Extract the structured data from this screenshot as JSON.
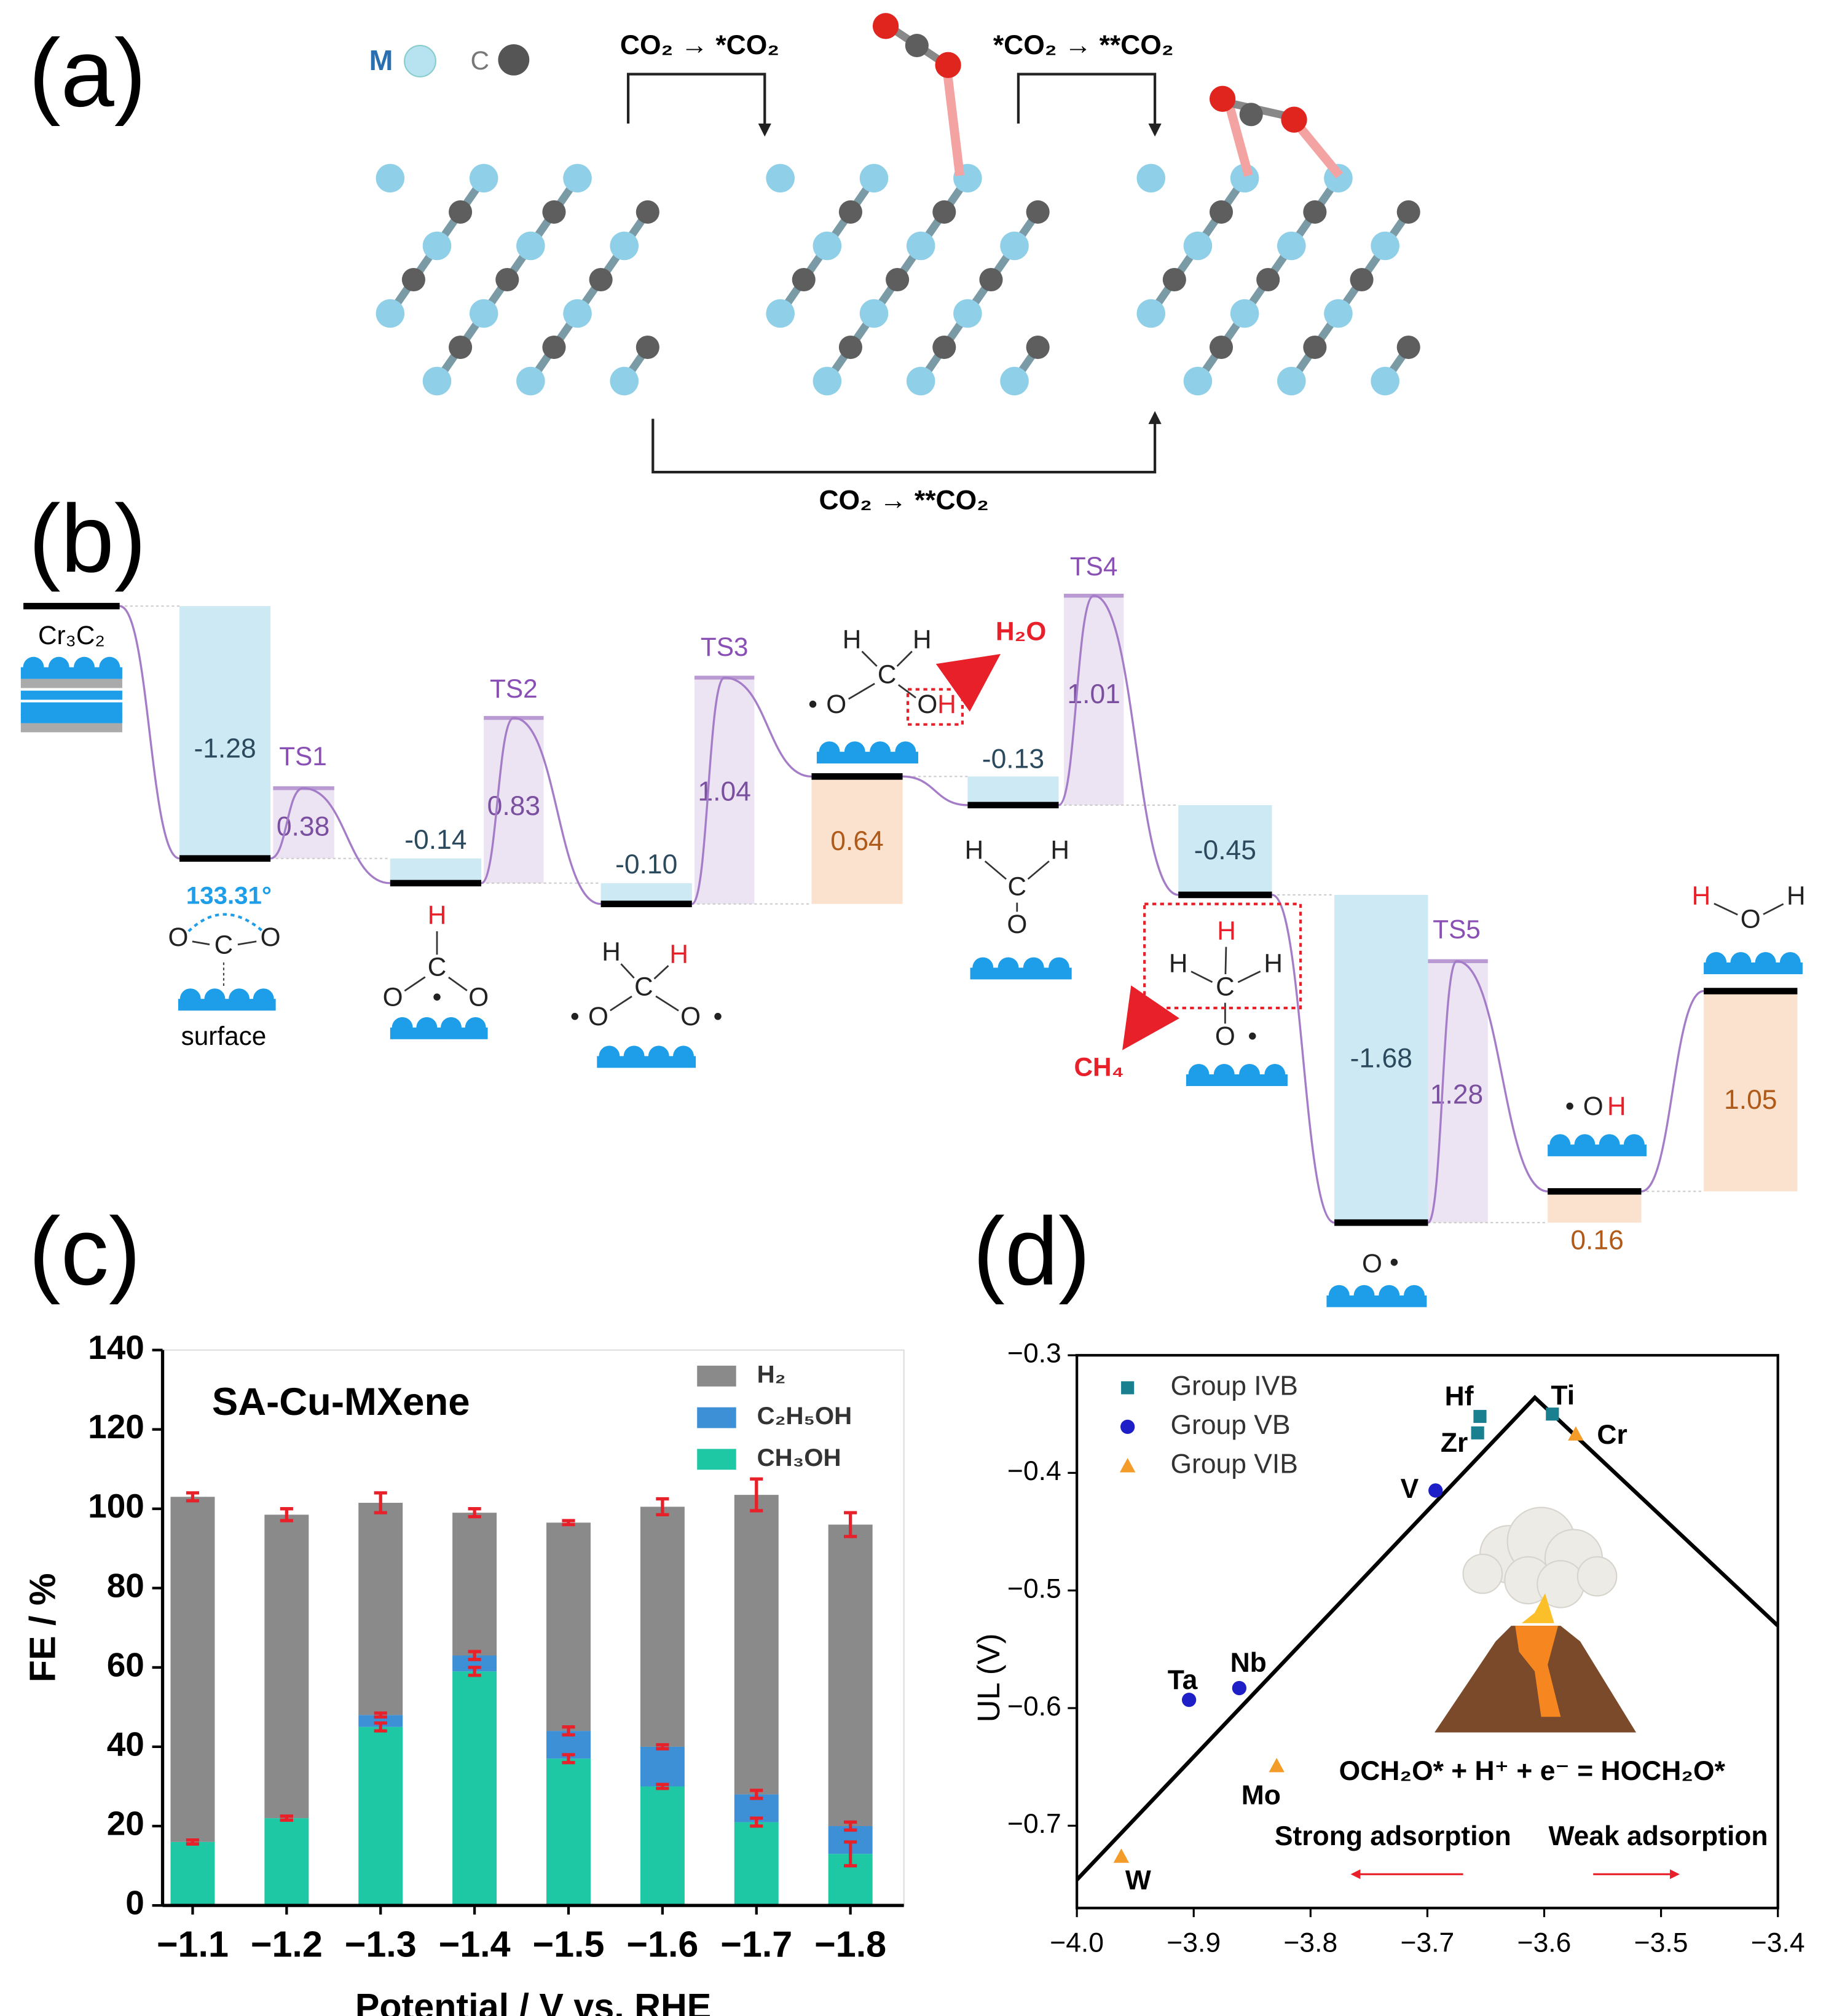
{
  "panel_labels": [
    "(a)",
    "(b)",
    "(c)",
    "(d)"
  ],
  "panel_a": {
    "legend": [
      "M",
      "C"
    ],
    "steps": [
      "CO₂ → *CO₂",
      "*CO₂ → **CO₂",
      "CO₂ → **CO₂"
    ]
  },
  "panel_b": {
    "surface_name": "Cr₃C₂",
    "energies": [
      "-1.28",
      "0.38",
      "-0.14",
      "0.83",
      "-0.10",
      "1.04",
      "0.64",
      "-0.13",
      "1.01",
      "-0.45",
      "-1.68",
      "1.28",
      "0.16",
      "1.05"
    ],
    "ts_labels": [
      "TS1",
      "TS2",
      "TS3",
      "TS4",
      "TS5"
    ],
    "angle": "133.31°",
    "surface_label": "surface",
    "products": [
      "H₂O",
      "CH₄"
    ],
    "species": [
      [
        "O",
        "C",
        "O"
      ],
      [
        "H",
        "C",
        "•",
        "O",
        "O"
      ],
      [
        "H",
        "H",
        "C",
        "•",
        "O",
        "O",
        "•"
      ],
      [
        "H",
        "H",
        "C",
        "•",
        "O",
        "O",
        "H"
      ],
      [
        "H",
        "H",
        "C",
        "O"
      ],
      [
        "H",
        "H",
        "C",
        "H",
        "O",
        "•"
      ],
      [
        "O",
        "•"
      ],
      [
        "•",
        "O",
        "H"
      ],
      [
        "H",
        "O",
        "H"
      ]
    ]
  },
  "chart_data": [
    {
      "type": "bar",
      "stacked": true,
      "title": "SA-Cu-MXene",
      "xlabel": "Potential / V vs. RHE",
      "ylabel": "FE / %",
      "categories": [
        "−1.1",
        "−1.2",
        "−1.3",
        "−1.4",
        "−1.5",
        "−1.6",
        "−1.7",
        "−1.8"
      ],
      "series": [
        {
          "name": "CH₃OH",
          "color": "#1ec8a5",
          "values": [
            16,
            22,
            45,
            59,
            37,
            30,
            21,
            13
          ],
          "errors": [
            0.5,
            0.5,
            1,
            1,
            1,
            0.5,
            1,
            3
          ]
        },
        {
          "name": "C₂H₅OH",
          "color": "#3d8fd6",
          "values": [
            0,
            0,
            3,
            4,
            7,
            10,
            7,
            7
          ],
          "errors": [
            0.5,
            0.5,
            0.5,
            1,
            1,
            0.5,
            1,
            1
          ]
        },
        {
          "name": "H₂",
          "color": "#8a8a8a",
          "values": [
            87,
            76.5,
            53.5,
            36,
            52.5,
            60.5,
            75.5,
            76
          ],
          "errors": [
            1,
            1.5,
            2.5,
            1,
            0.5,
            2,
            4,
            3
          ]
        }
      ],
      "ylim": [
        0,
        140
      ],
      "yticks": [
        0,
        20,
        40,
        60,
        80,
        100,
        120,
        140
      ],
      "legend": "upper right",
      "error_color": "#e8202a"
    },
    {
      "type": "scatter",
      "ylabel": "UL (V)",
      "xlim": [
        -4.0,
        -3.4
      ],
      "xticks": [
        {
          "value": -4.0,
          "label": "−4.0"
        },
        {
          "value": -3.9,
          "label": "−3.9"
        },
        {
          "value": -3.8,
          "label": "−3.8"
        },
        {
          "value": -3.7,
          "label": "−3.7"
        },
        {
          "value": -3.6,
          "label": "−3.6"
        },
        {
          "value": -3.5,
          "label": "−3.5"
        },
        {
          "value": -3.4,
          "label": "−3.4"
        }
      ],
      "ylim": [
        -0.77,
        -0.3
      ],
      "yticks": [
        {
          "value": -0.3,
          "label": "−0.3"
        },
        {
          "value": -0.4,
          "label": "−0.4"
        },
        {
          "value": -0.5,
          "label": "−0.5"
        },
        {
          "value": -0.6,
          "label": "−0.6"
        },
        {
          "value": -0.7,
          "label": "−0.7"
        }
      ],
      "series": [
        {
          "name": "Group IVB",
          "color": "#1a7f8e",
          "marker": "square",
          "labels": [
            "Hf",
            "Zr",
            "Ti"
          ],
          "x": [
            -3.655,
            -3.657,
            -3.593
          ],
          "y": [
            -0.352,
            -0.366,
            -0.35
          ]
        },
        {
          "name": "Group VB",
          "color": "#1f1fc8",
          "marker": "circle",
          "labels": [
            "V",
            "Nb",
            "Ta"
          ],
          "x": [
            -3.693,
            -3.861,
            -3.904
          ],
          "y": [
            -0.415,
            -0.583,
            -0.593
          ]
        },
        {
          "name": "Group VIB",
          "color": "#f39c2a",
          "marker": "triangle",
          "labels": [
            "Cr",
            "Mo",
            "W"
          ],
          "x": [
            -3.573,
            -3.829,
            -3.962
          ],
          "y": [
            -0.367,
            -0.649,
            -0.726
          ]
        }
      ],
      "line": {
        "color": "#000000",
        "x": [
          -4.0,
          -3.608,
          -3.4
        ],
        "y": [
          -0.746,
          -0.336,
          -0.53
        ]
      },
      "annotations": [
        "OCH₂O* + H⁺ + e⁻ = HOCH₂O*",
        "Strong adsorption",
        "Weak adsorption"
      ],
      "legend": "upper left"
    }
  ]
}
